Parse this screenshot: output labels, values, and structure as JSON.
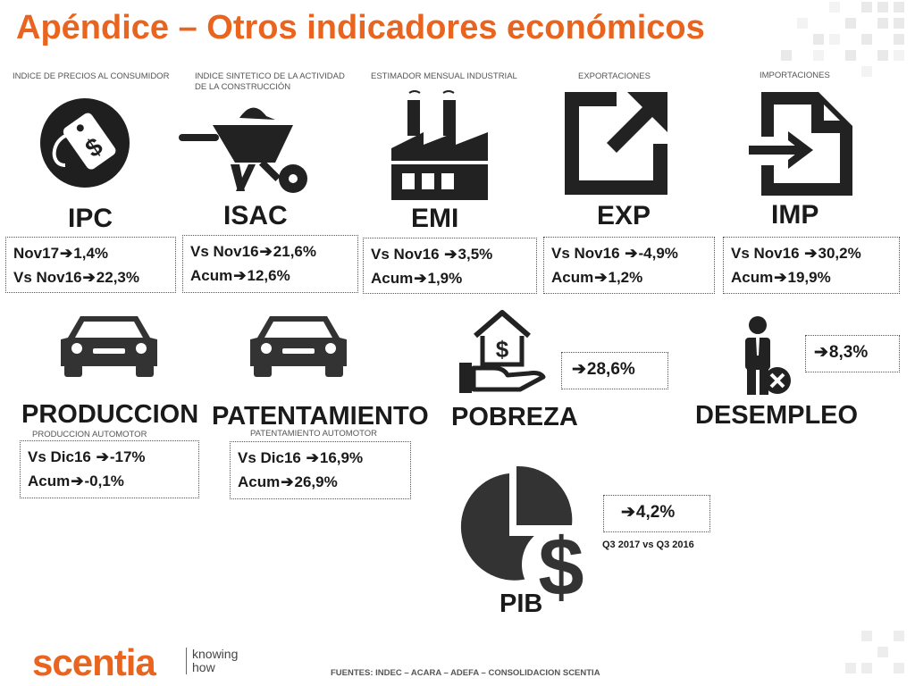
{
  "title": "Apéndice – Otros indicadores económicos",
  "arrow": "➔",
  "captions": {
    "ipc": "INDICE DE PRECIOS AL CONSUMIDOR",
    "isac": "INDICE SINTETICO DE LA ACTIVIDAD DE LA CONSTRUCCIÓN",
    "emi": "ESTIMADOR MENSUAL INDUSTRIAL",
    "exp": "EXPORTACIONES",
    "imp": "IMPORTACIONES",
    "produccion": "PRODUCCION AUTOMOTOR",
    "patentamiento": "PATENTAMIENTO AUTOMOTOR"
  },
  "indicators": {
    "ipc": {
      "name": "IPC",
      "l1_label": "Nov17",
      "l1_value": "1,4%",
      "l2_label": "Vs Nov16",
      "l2_value": "22,3%"
    },
    "isac": {
      "name": "ISAC",
      "l1_label": "Vs Nov16",
      "l1_value": "21,6%",
      "l2_label": "Acum",
      "l2_value": "12,6%"
    },
    "emi": {
      "name": "EMI",
      "l1_label": "Vs Nov16 ",
      "l1_value": "3,5%",
      "l2_label": "Acum",
      "l2_value": "1,9%"
    },
    "exp": {
      "name": "EXP",
      "l1_label": "Vs Nov16 ",
      "l1_value": "-4,9%",
      "l2_label": "Acum",
      "l2_value": "1,2%"
    },
    "imp": {
      "name": "IMP",
      "l1_label": "Vs Nov16 ",
      "l1_value": "30,2%",
      "l2_label": "Acum",
      "l2_value": "19,9%"
    },
    "produccion": {
      "name": "PRODUCCION",
      "l1_label": "Vs Dic16 ",
      "l1_value": "-17%",
      "l2_label": "Acum",
      "l2_value": "-0,1%"
    },
    "patentamiento": {
      "name": "PATENTAMIENTO",
      "l1_label": "Vs Dic16 ",
      "l1_value": "16,9%",
      "l2_label": "Acum",
      "l2_value": "26,9%"
    },
    "pobreza": {
      "name": "POBREZA",
      "value": "28,6%"
    },
    "desempleo": {
      "name": "DESEMPLEO",
      "value": "8,3%"
    },
    "pib": {
      "name": "PIB",
      "value": "4,2%",
      "note": "Q3 2017 vs Q3 2016"
    }
  },
  "icons": {
    "ipc": "price-tag-icon",
    "isac": "wheelbarrow-icon",
    "emi": "factory-icon",
    "exp": "export-arrow-icon",
    "imp": "import-file-icon",
    "produccion": "car-icon",
    "patentamiento": "car-icon",
    "pobreza": "house-hand-dollar-icon",
    "desempleo": "person-x-icon",
    "pib": "pie-dollar-icon"
  },
  "footer": {
    "brand": "scentia",
    "tagline_1": "knowing",
    "tagline_2": "how",
    "sources": "FUENTES: INDEC – ACARA – ADEFA – CONSOLIDACION SCENTIA"
  },
  "colors": {
    "accent": "#e8641f",
    "text": "#1a1a1a",
    "icon": "#222222"
  }
}
